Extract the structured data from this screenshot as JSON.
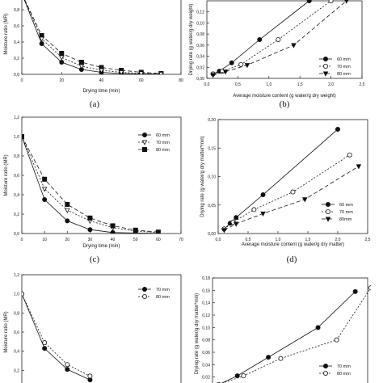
{
  "chart_data": [
    {
      "id": "a",
      "caption": "(a)",
      "type": "line",
      "xlabel": "Drying time (min)",
      "ylabel": "Moisture ratio (MR)",
      "xlim": [
        0,
        80
      ],
      "ylim": [
        0,
        1.0
      ],
      "xticks": [
        0,
        20,
        40,
        60,
        80
      ],
      "xtick_labels": [
        "0",
        "20",
        "40",
        "60",
        "80"
      ],
      "yticks": [
        0.0,
        0.2,
        0.4,
        0.6,
        0.8
      ],
      "ytick_labels": [
        "0,0",
        "0,2",
        "0,4",
        "0,6",
        "0,8"
      ],
      "legend": null,
      "series": [
        {
          "marker": "circle-filled",
          "dash": "",
          "x": [
            0,
            10,
            20,
            30,
            40,
            50,
            60,
            70
          ],
          "y": [
            1.0,
            0.38,
            0.15,
            0.06,
            0.025,
            0.01,
            0.005,
            0.002
          ]
        },
        {
          "marker": "square-filled",
          "dash": "5,3",
          "x": [
            0,
            10,
            20,
            30,
            40,
            50,
            60,
            70
          ],
          "y": [
            1.0,
            0.48,
            0.26,
            0.15,
            0.085,
            0.05,
            0.025,
            0.01
          ]
        },
        {
          "marker": "triangle-down-open",
          "dash": "2,2",
          "x": [
            0,
            10,
            20,
            30,
            40,
            50,
            60,
            70
          ],
          "y": [
            1.0,
            0.44,
            0.21,
            0.1,
            0.05,
            0.025,
            0.012,
            0.005
          ]
        }
      ]
    },
    {
      "id": "b",
      "caption": "(b)",
      "type": "line",
      "xlabel": "Average moisture content (g water/g dry weight)",
      "ylabel": "Drying rate (g water/g dry weight)",
      "xlim": [
        0,
        2.5
      ],
      "ylim": [
        0,
        0.14
      ],
      "xticks": [
        0,
        0.5,
        1.0,
        1.5,
        2.0,
        2.5
      ],
      "xtick_labels": [
        "0,0",
        "0,5",
        "1,0",
        "1,5",
        "2,0",
        "2,5"
      ],
      "yticks": [
        0,
        0.02,
        0.04,
        0.06,
        0.08,
        0.1,
        0.12
      ],
      "ytick_labels": [
        "0,00",
        "0,02",
        "0,04",
        "0,06",
        "0,08",
        "0,10",
        "0,12"
      ],
      "legend": {
        "position": "lower-right"
      },
      "series": [
        {
          "name": "60 mm",
          "marker": "circle-filled",
          "dash": "",
          "x": [
            0.1,
            0.2,
            0.4,
            0.85,
            1.65
          ],
          "y": [
            0.008,
            0.013,
            0.028,
            0.07,
            0.14
          ]
        },
        {
          "name": "70 mm",
          "marker": "circle-open",
          "dash": "2,2",
          "x": [
            0.1,
            0.25,
            0.55,
            1.15,
            2.0
          ],
          "y": [
            0.008,
            0.013,
            0.025,
            0.07,
            0.14
          ]
        },
        {
          "name": "80 mm",
          "marker": "triangle-down-filled",
          "dash": "5,3",
          "x": [
            0.1,
            0.3,
            0.65,
            1.4,
            2.25
          ],
          "y": [
            0.006,
            0.012,
            0.024,
            0.06,
            0.14
          ]
        }
      ]
    },
    {
      "id": "c",
      "caption": "(c)",
      "type": "line",
      "xlabel": "Drying time (min)",
      "ylabel": "Moisture ratio (MR)",
      "xlim": [
        0,
        70
      ],
      "ylim": [
        0,
        1.2
      ],
      "xticks": [
        0,
        10,
        20,
        30,
        40,
        50,
        60,
        70
      ],
      "xtick_labels": [
        "0",
        "10",
        "20",
        "30",
        "40",
        "50",
        "60",
        "70"
      ],
      "yticks": [
        0.0,
        0.2,
        0.4,
        0.6,
        0.8,
        1.0,
        1.2
      ],
      "ytick_labels": [
        "0,0",
        "0,2",
        "0,4",
        "0,6",
        "0,8",
        "1,0",
        "1,2"
      ],
      "legend": {
        "position": "top-right"
      },
      "series": [
        {
          "name": "60 mm",
          "marker": "circle-filled",
          "dash": "",
          "x": [
            0,
            10,
            20,
            30,
            40,
            50,
            60
          ],
          "y": [
            1.0,
            0.35,
            0.13,
            0.04,
            0.01,
            0.005,
            0.002
          ]
        },
        {
          "name": "70 mm",
          "marker": "triangle-down-open",
          "dash": "2,2",
          "x": [
            0,
            10,
            20,
            30,
            40,
            50,
            60
          ],
          "y": [
            1.0,
            0.46,
            0.24,
            0.13,
            0.06,
            0.025,
            0.01
          ]
        },
        {
          "name": "80 mm",
          "marker": "square-filled",
          "dash": "5,3",
          "x": [
            0,
            10,
            20,
            30,
            40,
            50,
            60
          ],
          "y": [
            1.0,
            0.56,
            0.3,
            0.16,
            0.08,
            0.035,
            0.015
          ]
        }
      ]
    },
    {
      "id": "d",
      "caption": "(d)",
      "type": "line",
      "xlabel": "Average moisture content (g water/g dry matter)",
      "ylabel": "Drying rate (g water/g dry matter*min)",
      "xlim": [
        0,
        2.5
      ],
      "ylim": [
        0,
        0.2
      ],
      "xticks": [
        0,
        0.5,
        1.0,
        1.5,
        2.0,
        2.5
      ],
      "xtick_labels": [
        "0,0",
        "0,5",
        "1,0",
        "1,5",
        "2,0",
        "2,5"
      ],
      "yticks": [
        0,
        0.05,
        0.1,
        0.15,
        0.2
      ],
      "ytick_labels": [
        "0,00",
        "0,05",
        "0,10",
        "0,15",
        "0,20"
      ],
      "legend": {
        "position": "lower-right"
      },
      "series": [
        {
          "name": "60 mm",
          "marker": "circle-filled",
          "dash": "",
          "x": [
            0.1,
            0.2,
            0.3,
            0.75,
            2.0
          ],
          "y": [
            0.008,
            0.018,
            0.028,
            0.068,
            0.183
          ]
        },
        {
          "name": "70 mm",
          "marker": "circle-open",
          "dash": "2,2",
          "x": [
            0.1,
            0.25,
            0.6,
            1.25,
            2.2
          ],
          "y": [
            0.008,
            0.02,
            0.042,
            0.073,
            0.138
          ]
        },
        {
          "name": "80mm",
          "marker": "triangle-down-filled",
          "dash": "5,3",
          "x": [
            0.1,
            0.3,
            0.75,
            1.45,
            2.35
          ],
          "y": [
            0.006,
            0.017,
            0.035,
            0.06,
            0.118
          ]
        }
      ]
    },
    {
      "id": "e",
      "caption": "",
      "type": "line",
      "xlabel": "",
      "ylabel": "Moisture ratio (MR)",
      "xlim": [
        0,
        70
      ],
      "ylim": [
        0,
        1.2
      ],
      "yticks": [
        0.2,
        0.4,
        0.6,
        0.8,
        1.0,
        1.2
      ],
      "ytick_labels": [
        "0,2",
        "0,4",
        "0,6",
        "0,8",
        "1,0",
        "1,2"
      ],
      "legend": {
        "position": "top-right"
      },
      "series": [
        {
          "name": "70 mm",
          "marker": "circle-filled",
          "dash": "",
          "x": [
            0,
            10,
            20,
            30
          ],
          "y": [
            1.0,
            0.43,
            0.21,
            0.1
          ]
        },
        {
          "name": "80 mm",
          "marker": "circle-open",
          "dash": "2,2",
          "x": [
            0,
            10,
            20,
            30
          ],
          "y": [
            1.0,
            0.49,
            0.26,
            0.14
          ]
        }
      ]
    },
    {
      "id": "f",
      "caption": "",
      "type": "line",
      "xlabel": "",
      "ylabel": "Drying rate (g water/g dry matter*min)",
      "xlim": [
        0,
        2.5
      ],
      "ylim": [
        0,
        0.18
      ],
      "yticks": [
        0.02,
        0.04,
        0.06,
        0.08,
        0.1,
        0.12,
        0.14,
        0.16,
        0.18
      ],
      "ytick_labels": [
        "0,02",
        "0,04",
        "0,06",
        "0,08",
        "0,10",
        "0,12",
        "0,14",
        "0,16",
        "0,18"
      ],
      "legend": {
        "position": "lower-right"
      },
      "series": [
        {
          "name": "70 mm",
          "marker": "circle-filled",
          "dash": "",
          "x": [
            0.1,
            0.4,
            0.9,
            1.7,
            2.3
          ],
          "y": [
            0.008,
            0.022,
            0.052,
            0.1,
            0.158
          ]
        },
        {
          "name": "80 mm",
          "marker": "circle-open",
          "dash": "2,2",
          "x": [
            0.1,
            0.5,
            1.1,
            2.0,
            2.55
          ],
          "y": [
            0.008,
            0.022,
            0.05,
            0.08,
            0.164
          ]
        }
      ]
    }
  ]
}
